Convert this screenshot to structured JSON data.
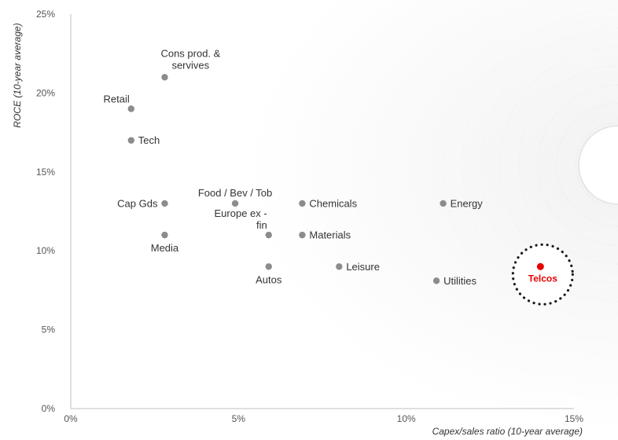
{
  "chart_data": {
    "type": "scatter",
    "xlabel": "Capex/sales ratio (10-year average)",
    "ylabel": "ROCE (10-year average)",
    "xlim": [
      0,
      15
    ],
    "ylim": [
      0,
      25
    ],
    "x_ticks": [
      "0%",
      "5%",
      "10%",
      "15%"
    ],
    "y_ticks": [
      "0%",
      "5%",
      "10%",
      "15%",
      "20%",
      "25%"
    ],
    "grid": false,
    "colors": {
      "point": "#8c8c8c",
      "highlight": "#e60000",
      "axis": "#bfbfbf",
      "ring": "#1a1a1a"
    },
    "points": [
      {
        "label": "Cons prod. &\nservives",
        "x": 2.8,
        "y": 21,
        "label_pos": "top-right"
      },
      {
        "label": "Retail",
        "x": 1.8,
        "y": 19,
        "label_pos": "top-left"
      },
      {
        "label": "Tech",
        "x": 1.8,
        "y": 17,
        "label_pos": "right"
      },
      {
        "label": "Cap Gds",
        "x": 2.8,
        "y": 13,
        "label_pos": "left"
      },
      {
        "label": "Media",
        "x": 2.8,
        "y": 11,
        "label_pos": "below"
      },
      {
        "label": "Food / Bev / Tob",
        "x": 4.9,
        "y": 13,
        "label_pos": "above"
      },
      {
        "label": "Europe ex -\nfin",
        "x": 5.9,
        "y": 11,
        "label_pos": "top-left"
      },
      {
        "label": "Autos",
        "x": 5.9,
        "y": 9,
        "label_pos": "below"
      },
      {
        "label": "Chemicals",
        "x": 6.9,
        "y": 13,
        "label_pos": "right"
      },
      {
        "label": "Materials",
        "x": 6.9,
        "y": 11,
        "label_pos": "right"
      },
      {
        "label": "Leisure",
        "x": 8.0,
        "y": 9,
        "label_pos": "right"
      },
      {
        "label": "Energy",
        "x": 11.1,
        "y": 13,
        "label_pos": "right"
      },
      {
        "label": "Utilities",
        "x": 10.9,
        "y": 8.1,
        "label_pos": "right"
      }
    ],
    "highlight": {
      "label": "Telcos",
      "x": 14.0,
      "y": 9
    }
  }
}
